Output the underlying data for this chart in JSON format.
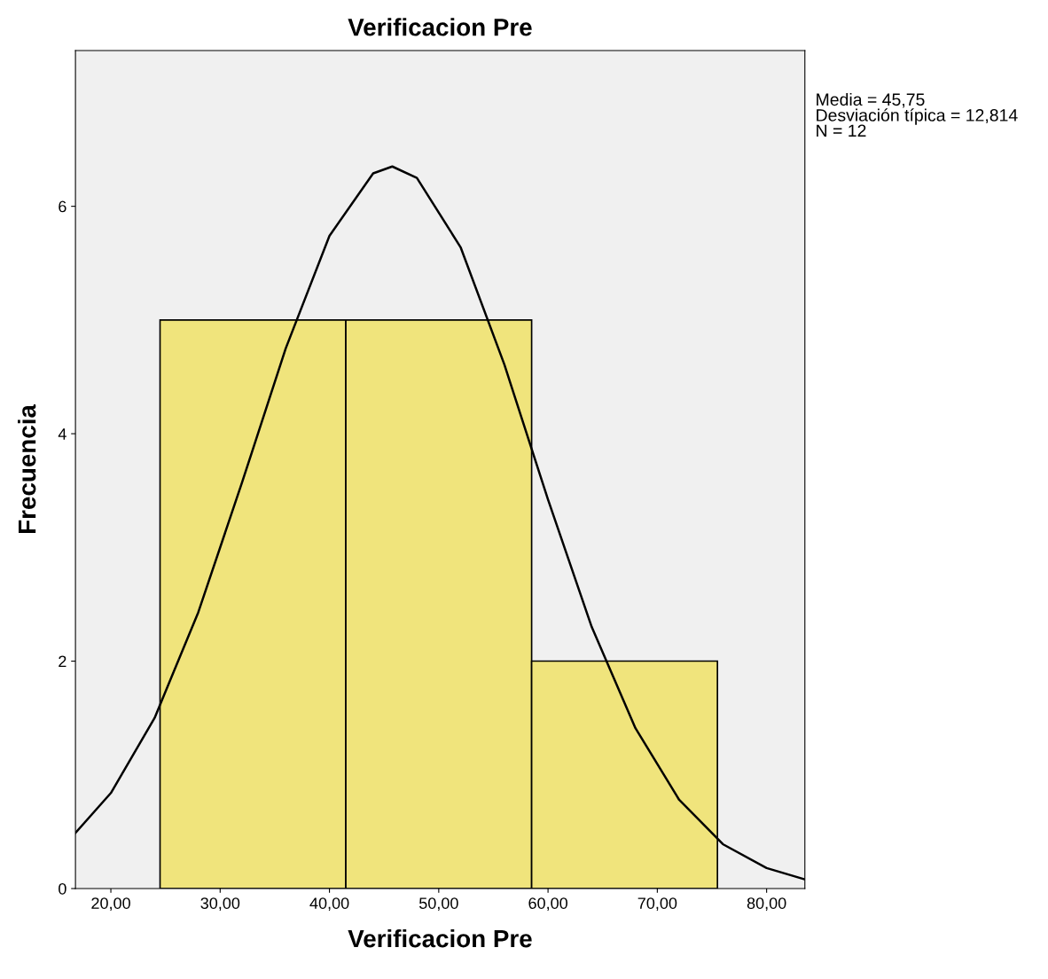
{
  "chart_data": {
    "type": "histogram",
    "title": "Verificacion Pre",
    "xlabel": "Verificacion Pre",
    "ylabel": "Frecuencia",
    "bins": [
      24.5,
      41.5,
      58.5,
      75.5
    ],
    "values": [
      5,
      5,
      2
    ],
    "color": "#f0e47c",
    "series": [
      {
        "type": "line",
        "color": "#000000",
        "x": [
          16.76,
          20,
          24,
          28,
          32,
          36,
          40,
          44,
          45.75,
          48,
          52,
          56,
          60,
          64,
          68,
          72,
          76,
          80,
          83.5
        ],
        "values": [
          0.49,
          0.84,
          1.5,
          2.43,
          3.57,
          4.75,
          5.74,
          6.29,
          6.35,
          6.25,
          5.64,
          4.61,
          3.42,
          2.3,
          1.41,
          0.78,
          0.39,
          0.18,
          0.08
        ]
      }
    ],
    "xlim": [
      16.76,
      83.5
    ],
    "ylim": [
      0,
      7.37
    ],
    "xticks": [
      {
        "value": 20,
        "label": "20,00"
      },
      {
        "value": 30,
        "label": "30,00"
      },
      {
        "value": 40,
        "label": "40,00"
      },
      {
        "value": 50,
        "label": "50,00"
      },
      {
        "value": 60,
        "label": "60,00"
      },
      {
        "value": 70,
        "label": "70,00"
      },
      {
        "value": 80,
        "label": "80,00"
      }
    ],
    "yticks": [
      0,
      2,
      4,
      6
    ],
    "annotations": [
      "Media = 45,75",
      "Desviación típica = 12,814",
      "N = 12"
    ],
    "grid": false,
    "legend": false
  }
}
